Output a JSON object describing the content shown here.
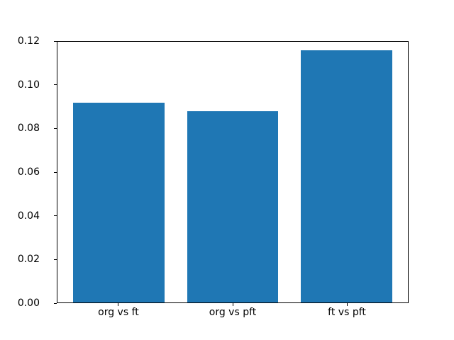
{
  "chart_data": {
    "type": "bar",
    "categories": [
      "org vs ft",
      "org vs pft",
      "ft vs pft"
    ],
    "values": [
      0.092,
      0.088,
      0.116
    ],
    "title": "",
    "xlabel": "",
    "ylabel": "",
    "ylim": [
      0,
      0.12
    ],
    "ytick_step": 0.02,
    "ytick_decimals": 2,
    "xlim": [
      -0.54,
      2.54
    ],
    "bar_width": 0.8,
    "bar_color": "#1f77b4",
    "axis_color": "#000000",
    "text_color": "#000000",
    "background_color": "#ffffff",
    "grid": false,
    "legend": null
  }
}
